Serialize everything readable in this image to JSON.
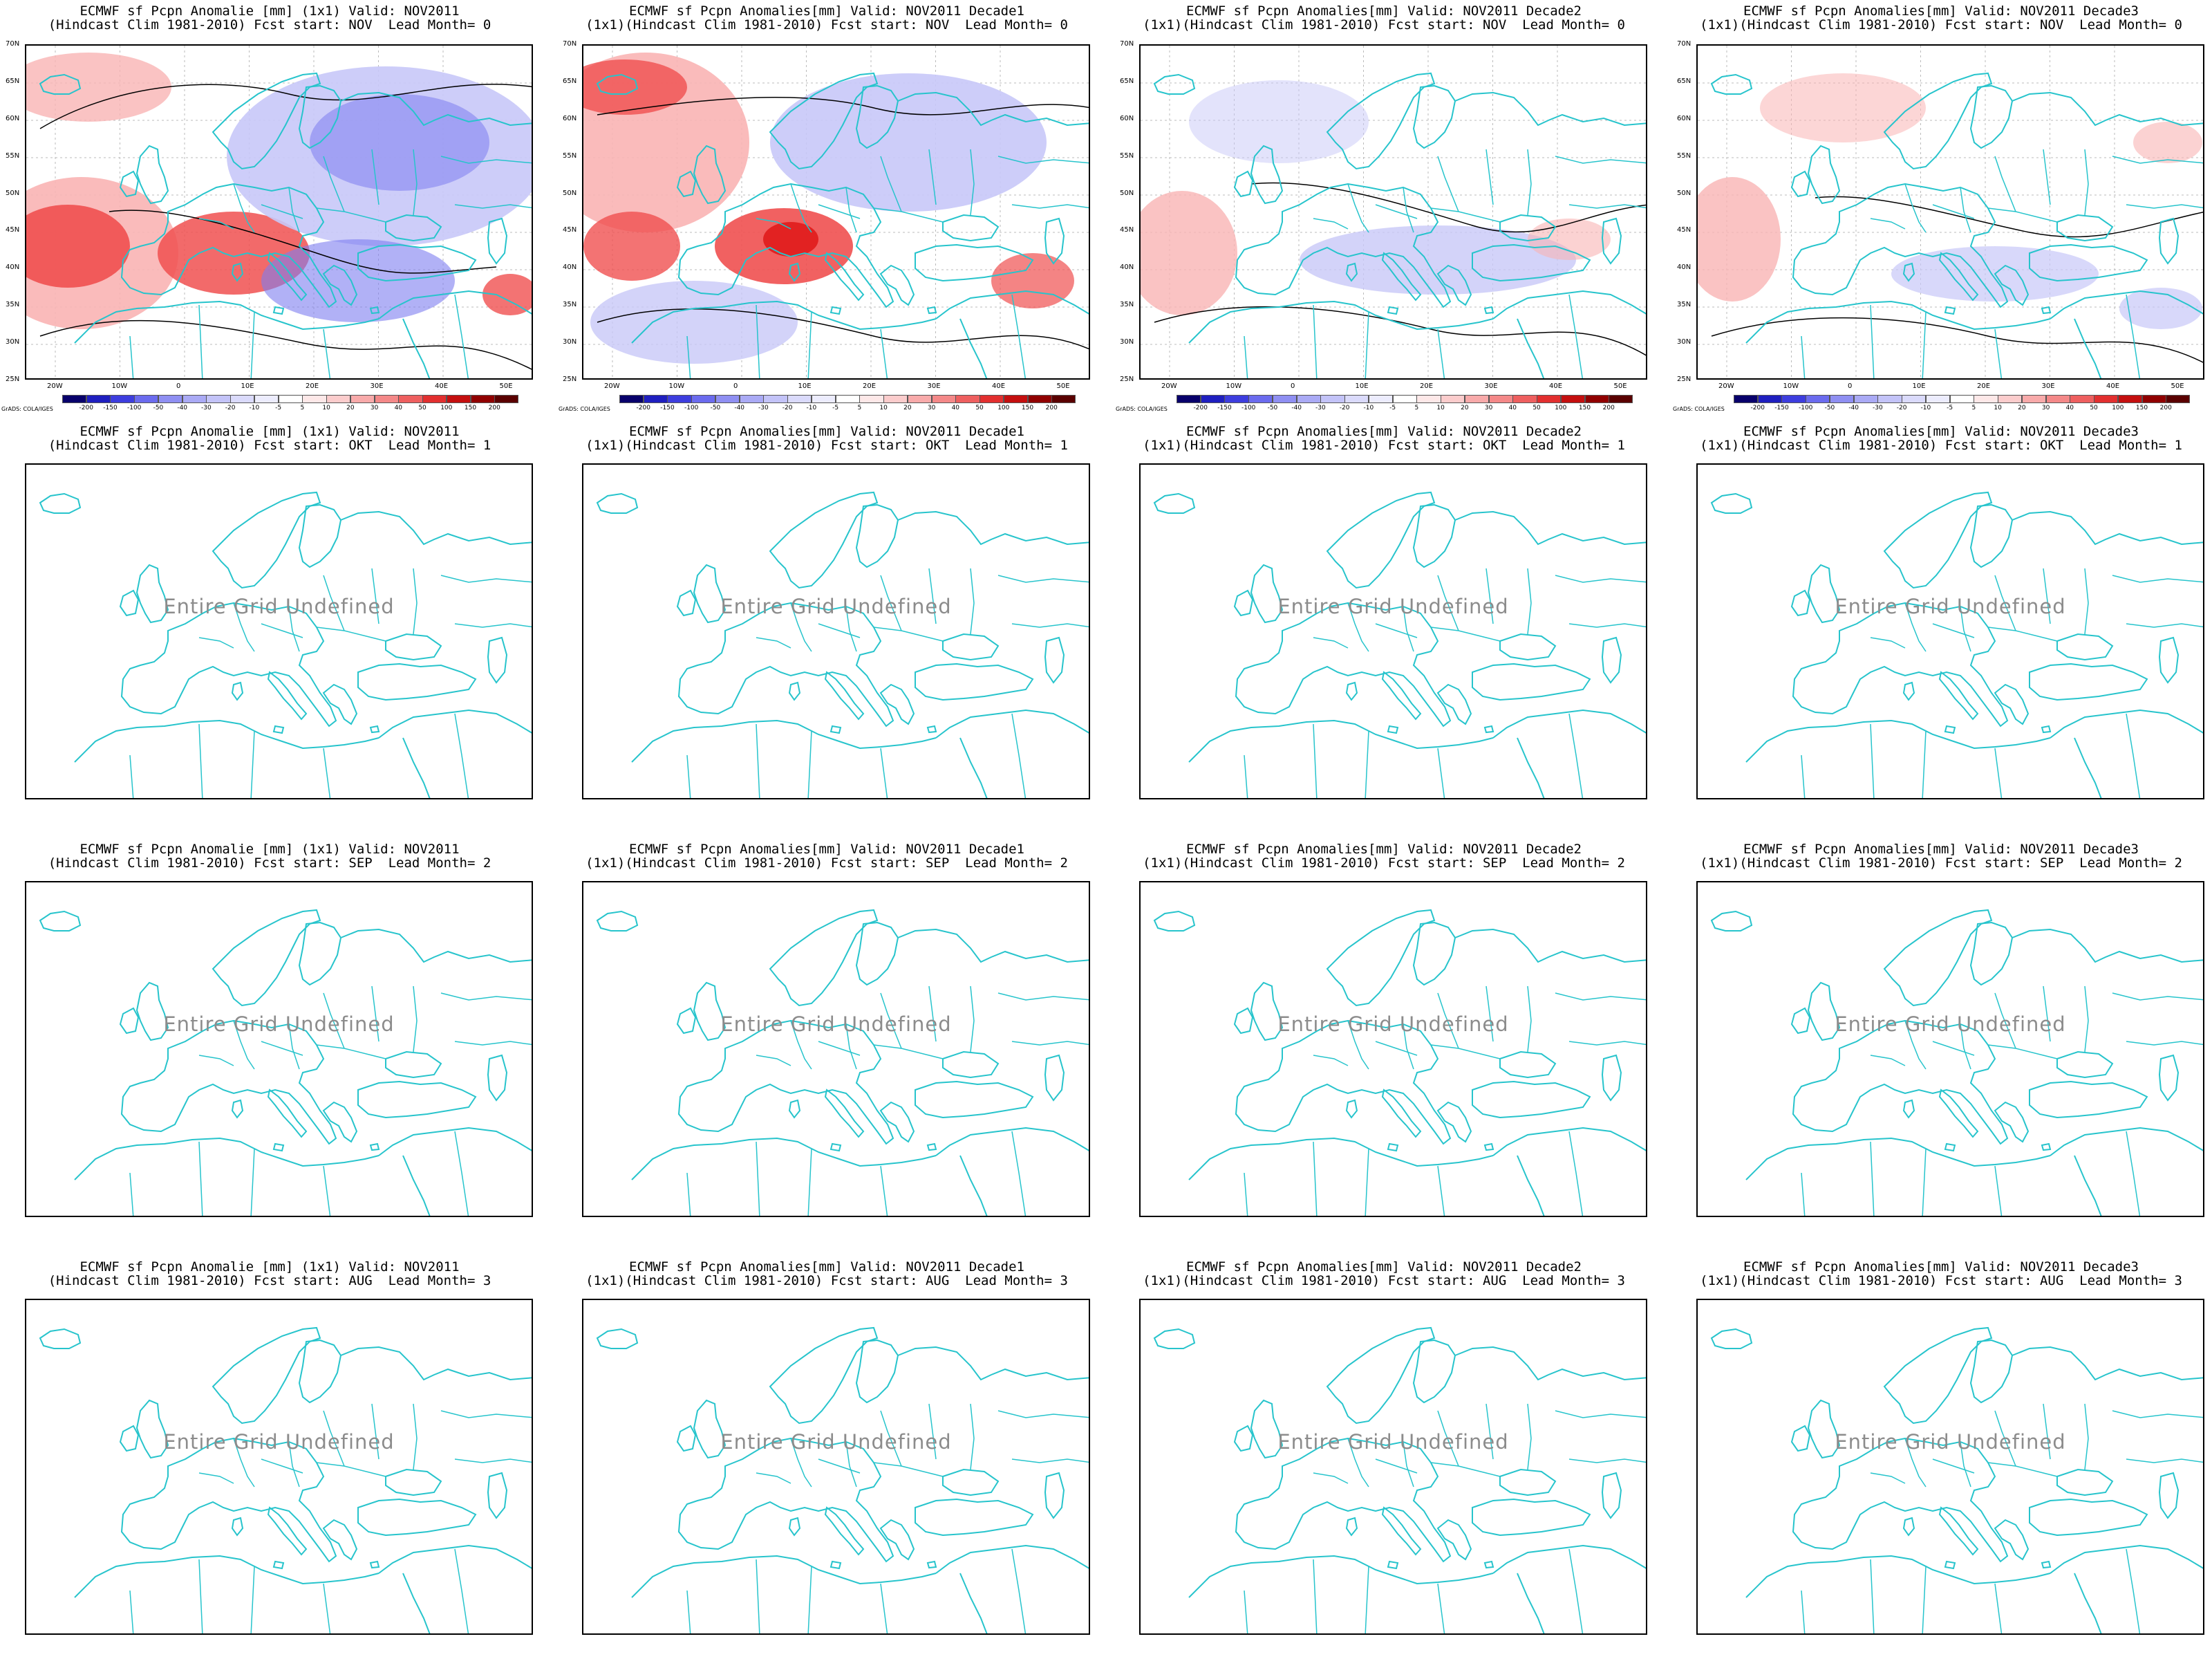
{
  "undefined_text": "Entire Grid Undefined",
  "lat_labels": [
    "70N",
    "65N",
    "60N",
    "55N",
    "50N",
    "45N",
    "40N",
    "35N",
    "30N",
    "25N"
  ],
  "lon_labels": [
    "20W",
    "10W",
    "0",
    "10E",
    "20E",
    "30E",
    "40E",
    "50E"
  ],
  "colorbar": {
    "ticks": [
      "-200",
      "-150",
      "-100",
      "-50",
      "-40",
      "-30",
      "-20",
      "-10",
      "-5",
      "5",
      "10",
      "20",
      "30",
      "40",
      "50",
      "100",
      "150",
      "200"
    ],
    "colors": [
      "#08006b",
      "#1f1fbf",
      "#3d3dde",
      "#6b6bee",
      "#8f8ff2",
      "#aaaaf5",
      "#c3c3f8",
      "#dadafb",
      "#ececfd",
      "#ffffff",
      "#fde8e8",
      "#fbcccc",
      "#f8aaaa",
      "#f48888",
      "#ee5f5f",
      "#e22f2f",
      "#c40f0f",
      "#900000",
      "#5a0000"
    ],
    "credit": "GrADS: COLA/IGES"
  },
  "rows": [
    {
      "panels": [
        {
          "title1": "ECMWF sf Pcpn Anomalie [mm] (1x1) Valid: NOV2011",
          "title2": "(Hindcast Clim 1981-2010) Fcst start: NOV  Lead Month= 0"
        },
        {
          "title1": "ECMWF sf Pcpn Anomalies[mm] Valid: NOV2011 Decade1",
          "title2": "(1x1)(Hindcast Clim 1981-2010) Fcst start: NOV  Lead Month= 0"
        },
        {
          "title1": "ECMWF sf Pcpn Anomalies[mm] Valid: NOV2011 Decade2",
          "title2": "(1x1)(Hindcast Clim 1981-2010) Fcst start: NOV  Lead Month= 0"
        },
        {
          "title1": "ECMWF sf Pcpn Anomalies[mm] Valid: NOV2011 Decade3",
          "title2": "(1x1)(Hindcast Clim 1981-2010) Fcst start: NOV  Lead Month= 0"
        }
      ]
    },
    {
      "panels": [
        {
          "title1": "ECMWF sf Pcpn Anomalie [mm] (1x1) Valid: NOV2011",
          "title2": "(Hindcast Clim 1981-2010) Fcst start: OKT  Lead Month= 1"
        },
        {
          "title1": "ECMWF sf Pcpn Anomalies[mm] Valid: NOV2011 Decade1",
          "title2": "(1x1)(Hindcast Clim 1981-2010) Fcst start: OKT  Lead Month= 1"
        },
        {
          "title1": "ECMWF sf Pcpn Anomalies[mm] Valid: NOV2011 Decade2",
          "title2": "(1x1)(Hindcast Clim 1981-2010) Fcst start: OKT  Lead Month= 1"
        },
        {
          "title1": "ECMWF sf Pcpn Anomalies[mm] Valid: NOV2011 Decade3",
          "title2": "(1x1)(Hindcast Clim 1981-2010) Fcst start: OKT  Lead Month= 1"
        }
      ]
    },
    {
      "panels": [
        {
          "title1": "ECMWF sf Pcpn Anomalie [mm] (1x1) Valid: NOV2011",
          "title2": "(Hindcast Clim 1981-2010) Fcst start: SEP  Lead Month= 2"
        },
        {
          "title1": "ECMWF sf Pcpn Anomalies[mm] Valid: NOV2011 Decade1",
          "title2": "(1x1)(Hindcast Clim 1981-2010) Fcst start: SEP  Lead Month= 2"
        },
        {
          "title1": "ECMWF sf Pcpn Anomalies[mm] Valid: NOV2011 Decade2",
          "title2": "(1x1)(Hindcast Clim 1981-2010) Fcst start: SEP  Lead Month= 2"
        },
        {
          "title1": "ECMWF sf Pcpn Anomalies[mm] Valid: NOV2011 Decade3",
          "title2": "(1x1)(Hindcast Clim 1981-2010) Fcst start: SEP  Lead Month= 2"
        }
      ]
    },
    {
      "panels": [
        {
          "title1": "ECMWF sf Pcpn Anomalie [mm] (1x1) Valid: NOV2011",
          "title2": "(Hindcast Clim 1981-2010) Fcst start: AUG  Lead Month= 3"
        },
        {
          "title1": "ECMWF sf Pcpn Anomalies[mm] Valid: NOV2011 Decade1",
          "title2": "(1x1)(Hindcast Clim 1981-2010) Fcst start: AUG  Lead Month= 3"
        },
        {
          "title1": "ECMWF sf Pcpn Anomalies[mm] Valid: NOV2011 Decade2",
          "title2": "(1x1)(Hindcast Clim 1981-2010) Fcst start: AUG  Lead Month= 3"
        },
        {
          "title1": "ECMWF sf Pcpn Anomalies[mm] Valid: NOV2011 Decade3",
          "title2": "(1x1)(Hindcast Clim 1981-2010) Fcst start: AUG  Lead Month= 3"
        }
      ]
    }
  ]
}
